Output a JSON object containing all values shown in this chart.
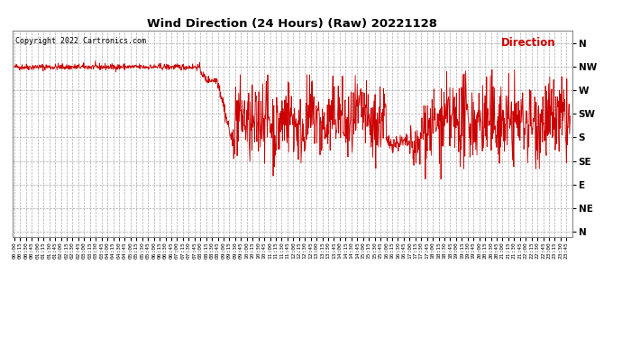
{
  "title": "Wind Direction (24 Hours) (Raw) 20221128",
  "copyright": "Copyright 2022 Cartronics.com",
  "legend_label": "Direction",
  "background_color": "#ffffff",
  "plot_bg_color": "#ffffff",
  "line_color": "#cc0000",
  "legend_color": "#cc0000",
  "copyright_color": "#000000",
  "title_color": "#000000",
  "grid_color": "#aaaaaa",
  "ytick_labels": [
    "N",
    "NW",
    "W",
    "SW",
    "S",
    "SE",
    "E",
    "NE",
    "N"
  ],
  "ytick_values": [
    360,
    315,
    270,
    225,
    180,
    135,
    90,
    45,
    0
  ],
  "ylim": [
    -10,
    385
  ],
  "xlim": [
    -5,
    1440
  ]
}
